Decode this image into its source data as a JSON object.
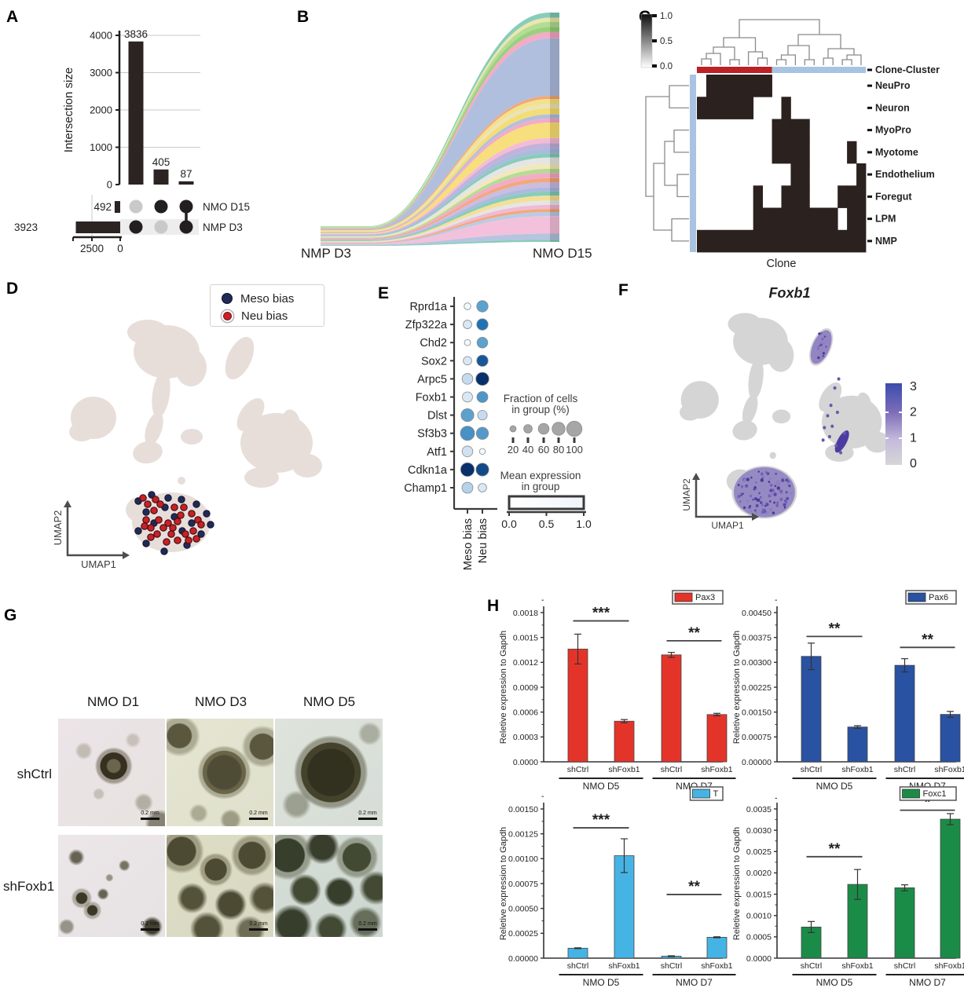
{
  "panel_labels": {
    "a": "A",
    "b": "B",
    "c": "C",
    "d": "D",
    "e": "E",
    "f": "F",
    "g": "G",
    "h": "H"
  },
  "colors": {
    "ink": "#231f20",
    "bar_black": "#2b2423",
    "grid": "#c9c9c9",
    "gray_dot": "#c9c9c9",
    "clone_red": "#bd2025",
    "clone_blue": "#a9c4e2",
    "heat_black": "#2b211f",
    "umap_blob_d": "#e7deda",
    "umap_blob_f": "#d5d5d5",
    "meso_navy": "#1f2b56",
    "neu_red": "#c92027",
    "purple_mid": "#8b7cc0",
    "purple_dark": "#5b4aa5"
  },
  "chart_data": [
    {
      "id": "upset",
      "type": "bar",
      "title": "",
      "ylabel": "Intersection size",
      "categories": [
        "NMP D3 only",
        "NMO D15 only",
        "NMP D3 & NMO D15"
      ],
      "values": [
        3836,
        405,
        87
      ],
      "value_labels": [
        "3836",
        "405",
        "87"
      ],
      "yticks": [
        0,
        1000,
        2000,
        3000,
        4000
      ],
      "ytick_labels": [
        "0",
        "1000",
        "2000",
        "3000",
        "4000"
      ],
      "ylim": [
        0,
        4000
      ],
      "set_rows": [
        "NMO D15",
        "NMP D3"
      ],
      "set_sizes": [
        492,
        3923
      ],
      "set_size_labels": [
        "492",
        "3923"
      ],
      "set_axis_ticks": [
        "2500",
        "0"
      ],
      "membership": [
        [
          false,
          true
        ],
        [
          true,
          false
        ],
        [
          true,
          true
        ]
      ]
    },
    {
      "id": "sankey",
      "type": "area",
      "left_label": "NMP D3",
      "right_label": "NMO D15",
      "ribbons": [
        {
          "h": 5,
          "c": "#7cc7b2"
        },
        {
          "h": 4,
          "c": "#e9e3a6"
        },
        {
          "h": 5,
          "c": "#abd989"
        },
        {
          "h": 5,
          "c": "#8fcb70"
        },
        {
          "h": 6,
          "c": "#f2a3c0"
        },
        {
          "h": 56,
          "c": "#a9b8da"
        },
        {
          "h": 3,
          "c": "#f0a06e"
        },
        {
          "h": 5,
          "c": "#f2df7d"
        },
        {
          "h": 4,
          "c": "#e9e0b2"
        },
        {
          "h": 6,
          "c": "#f4d967"
        },
        {
          "h": 4,
          "c": "#aab9dc"
        },
        {
          "h": 4,
          "c": "#f2a3c0"
        },
        {
          "h": 15,
          "c": "#f5dc6e"
        },
        {
          "h": 5,
          "c": "#f2b5d2"
        },
        {
          "h": 5,
          "c": "#bcaad6"
        },
        {
          "h": 5,
          "c": "#a2b4da"
        },
        {
          "h": 4,
          "c": "#7cc7b2"
        },
        {
          "h": 6,
          "c": "#e2e2e2"
        },
        {
          "h": 5,
          "c": "#efe5b4"
        },
        {
          "h": 4,
          "c": "#abd989"
        },
        {
          "h": 5,
          "c": "#f2a3c0"
        },
        {
          "h": 4,
          "c": "#f0a06e"
        },
        {
          "h": 5,
          "c": "#c6b5dd"
        },
        {
          "h": 4,
          "c": "#a2b4da"
        },
        {
          "h": 4,
          "c": "#7cc7b2"
        },
        {
          "h": 5,
          "c": "#f2dd8d"
        },
        {
          "h": 4,
          "c": "#e2e2e2"
        },
        {
          "h": 4,
          "c": "#f0b2cf"
        },
        {
          "h": 3,
          "c": "#f0a06e"
        },
        {
          "h": 4,
          "c": "#b5c5e2"
        },
        {
          "h": 17,
          "c": "#f2bad7"
        },
        {
          "h": 6,
          "c": "#aebede"
        },
        {
          "h": 2,
          "c": "#7cc7b2"
        }
      ]
    },
    {
      "id": "heatmap",
      "type": "heatmap",
      "xlabel": "Clone",
      "annotation_label": "Clone-Cluster",
      "colorbar_ticks": [
        "1.0",
        "0.5",
        "0.0"
      ],
      "rows": [
        "NeuPro",
        "Neuron",
        "MyoPro",
        "Myotome",
        "Endothelium",
        "Foregut",
        "LPM",
        "NMP"
      ],
      "n_cols": 18,
      "red_cols": 8,
      "matrix": [
        "011111110000000000",
        "111111000100000000",
        "000000001111000000",
        "000000001111000010",
        "000000000011000001",
        "000000100111000111",
        "000000111111111011",
        "111111111111111111"
      ]
    },
    {
      "id": "dotplot",
      "type": "scatter",
      "columns": [
        "Meso bias",
        "Neu bias"
      ],
      "genes": [
        "Rprd1a",
        "Zfp322a",
        "Chd2",
        "Sox2",
        "Arpc5",
        "Foxb1",
        "Dlst",
        "Sf3b3",
        "Atf1",
        "Cdkn1a",
        "Champ1"
      ],
      "rows": [
        {
          "gene": "Rprd1a",
          "meso": {
            "pct": 25,
            "expr": 0.02
          },
          "neu": {
            "pct": 65,
            "expr": 0.55
          }
        },
        {
          "gene": "Zfp322a",
          "meso": {
            "pct": 40,
            "expr": 0.15
          },
          "neu": {
            "pct": 65,
            "expr": 0.75
          }
        },
        {
          "gene": "Chd2",
          "meso": {
            "pct": 20,
            "expr": 0.02
          },
          "neu": {
            "pct": 60,
            "expr": 0.55
          }
        },
        {
          "gene": "Sox2",
          "meso": {
            "pct": 40,
            "expr": 0.15
          },
          "neu": {
            "pct": 65,
            "expr": 0.85
          }
        },
        {
          "gene": "Arpc5",
          "meso": {
            "pct": 60,
            "expr": 0.25
          },
          "neu": {
            "pct": 80,
            "expr": 1.0
          }
        },
        {
          "gene": "Foxb1",
          "meso": {
            "pct": 55,
            "expr": 0.15
          },
          "neu": {
            "pct": 62,
            "expr": 0.6
          }
        },
        {
          "gene": "Dlst",
          "meso": {
            "pct": 78,
            "expr": 0.55
          },
          "neu": {
            "pct": 50,
            "expr": 0.25
          }
        },
        {
          "gene": "Sf3b3",
          "meso": {
            "pct": 90,
            "expr": 0.62
          },
          "neu": {
            "pct": 72,
            "expr": 0.58
          }
        },
        {
          "gene": "Atf1",
          "meso": {
            "pct": 60,
            "expr": 0.2
          },
          "neu": {
            "pct": 18,
            "expr": 0.02
          }
        },
        {
          "gene": "Cdkn1a",
          "meso": {
            "pct": 85,
            "expr": 1.0
          },
          "neu": {
            "pct": 78,
            "expr": 0.9
          }
        },
        {
          "gene": "Champ1",
          "meso": {
            "pct": 62,
            "expr": 0.3
          },
          "neu": {
            "pct": 40,
            "expr": 0.15
          }
        }
      ],
      "fraction_legend": {
        "title_lines": [
          "Fraction of cells",
          "in group (%)"
        ],
        "sizes": [
          20,
          40,
          60,
          80,
          100
        ],
        "labels": [
          "20",
          "40",
          "60",
          "80",
          "100"
        ]
      },
      "expression_legend": {
        "title_lines": [
          "Mean expression",
          "in group"
        ],
        "tick_labels": [
          "0.0",
          "0.5",
          "1.0"
        ]
      }
    },
    {
      "id": "pax3",
      "type": "bar",
      "legend": "Pax3",
      "color": "#e4342a",
      "ylabel": "Reletive expression to Gapdh",
      "categories": [
        "shCtrl",
        "shFoxb1",
        "shCtrl",
        "shFoxb1"
      ],
      "groups": [
        "NMO D5",
        "NMO D7"
      ],
      "values": [
        0.00136,
        0.00049,
        0.00129,
        0.00057
      ],
      "errors": [
        0.00018,
        2e-05,
        3e-05,
        1.5e-05
      ],
      "ymax": 0.0018,
      "ytick_labels": [
        "0.0000",
        "0.0003",
        "0.0006",
        "0.0009",
        "0.0012",
        "0.0015",
        "0.0018"
      ],
      "sig": [
        {
          "i": 0,
          "j": 1,
          "stars": "***",
          "y": 0.0017
        },
        {
          "i": 2,
          "j": 3,
          "stars": "**",
          "y": 0.00146
        }
      ]
    },
    {
      "id": "pax6",
      "type": "bar",
      "legend": "Pax6",
      "color": "#2a52a2",
      "ylabel": "Reletive expression to Gapdh",
      "categories": [
        "shCtrl",
        "shFoxb1",
        "shCtrl",
        "shFoxb1"
      ],
      "groups": [
        "NMO D5",
        "NMO D7"
      ],
      "values": [
        0.00318,
        0.00105,
        0.00291,
        0.00143
      ],
      "errors": [
        0.0004,
        4e-05,
        0.0002,
        9e-05
      ],
      "ymax": 0.0045,
      "ytick_labels": [
        "0.00000",
        "0.00075",
        "0.00150",
        "0.00225",
        "0.00300",
        "0.00375",
        "0.00450"
      ],
      "sig": [
        {
          "i": 0,
          "j": 1,
          "stars": "**",
          "y": 0.00378
        },
        {
          "i": 2,
          "j": 3,
          "stars": "**",
          "y": 0.00345
        }
      ]
    },
    {
      "id": "t",
      "type": "bar",
      "legend": "T",
      "color": "#45b4e4",
      "ylabel": "Reletive expression to Gapdh",
      "categories": [
        "shCtrl",
        "shFoxb1",
        "shCtrl",
        "shFoxb1"
      ],
      "groups": [
        "NMO D5",
        "NMO D7"
      ],
      "values": [
        0.0001,
        0.00103,
        2e-05,
        0.00021
      ],
      "errors": [
        4e-06,
        0.00017,
        4e-06,
        5e-06
      ],
      "ymax": 0.0015,
      "ytick_labels": [
        "0.00000",
        "0.00025",
        "0.00050",
        "0.00075",
        "0.00100",
        "0.00125",
        "0.00150"
      ],
      "sig": [
        {
          "i": 0,
          "j": 1,
          "stars": "***",
          "y": 0.00131
        },
        {
          "i": 2,
          "j": 3,
          "stars": "**",
          "y": 0.00064
        }
      ]
    },
    {
      "id": "foxc1",
      "type": "bar",
      "legend": "Foxc1",
      "color": "#1b8c48",
      "ylabel": "Reletive expression to Gapdh",
      "categories": [
        "shCtrl",
        "shFoxb1",
        "shCtrl",
        "shFoxb1"
      ],
      "groups": [
        "NMO D5",
        "NMO D7"
      ],
      "values": [
        0.00073,
        0.00173,
        0.00165,
        0.00326
      ],
      "errors": [
        0.00013,
        0.00035,
        7e-05,
        0.00013
      ],
      "ymax": 0.0035,
      "ytick_labels": [
        "0.0000",
        "0.0005",
        "0.0010",
        "0.0015",
        "0.0020",
        "0.0025",
        "0.0030",
        "0.0035"
      ],
      "sig": [
        {
          "i": 0,
          "j": 1,
          "stars": "**",
          "y": 0.00238
        },
        {
          "i": 2,
          "j": 3,
          "stars": "*",
          "y": 0.00347
        }
      ]
    }
  ],
  "umap_d": {
    "legend": [
      {
        "label": "Meso bias"
      },
      {
        "label": "Neu bias"
      }
    ],
    "xlabel": "UMAP1",
    "ylabel": "UMAP2",
    "meso_dots": [
      [
        176,
        288
      ],
      [
        193,
        280
      ],
      [
        214,
        284
      ],
      [
        231,
        286
      ],
      [
        250,
        292
      ],
      [
        263,
        304
      ],
      [
        268,
        318
      ],
      [
        256,
        330
      ],
      [
        238,
        344
      ],
      [
        209,
        352
      ],
      [
        186,
        342
      ],
      [
        176,
        326
      ],
      [
        196,
        316
      ],
      [
        222,
        308
      ],
      [
        244,
        316
      ],
      [
        210,
        296
      ],
      [
        232,
        326
      ],
      [
        186,
        302
      ]
    ],
    "neu_dots": [
      [
        182,
        284
      ],
      [
        188,
        292
      ],
      [
        198,
        286
      ],
      [
        204,
        292
      ],
      [
        196,
        300
      ],
      [
        186,
        312
      ],
      [
        192,
        322
      ],
      [
        200,
        330
      ],
      [
        208,
        322
      ],
      [
        202,
        312
      ],
      [
        214,
        316
      ],
      [
        220,
        322
      ],
      [
        226,
        314
      ],
      [
        218,
        330
      ],
      [
        226,
        338
      ],
      [
        236,
        330
      ],
      [
        244,
        304
      ],
      [
        252,
        312
      ],
      [
        234,
        296
      ],
      [
        246,
        326
      ],
      [
        256,
        318
      ],
      [
        212,
        340
      ],
      [
        192,
        334
      ],
      [
        240,
        338
      ],
      [
        222,
        296
      ],
      [
        230,
        306
      ],
      [
        184,
        320
      ],
      [
        250,
        336
      ]
    ]
  },
  "umap_f": {
    "title": "Foxb1",
    "xlabel": "UMAP1",
    "ylabel": "UMAP2",
    "colorbar_ticks": [
      "3",
      "2",
      "1",
      "0"
    ]
  },
  "microscopy": {
    "columns": [
      "NMO D1",
      "NMO D3",
      "NMO D5"
    ],
    "rows": [
      "shCtrl",
      "shFoxb1"
    ],
    "scale_label": "0.2 mm"
  }
}
